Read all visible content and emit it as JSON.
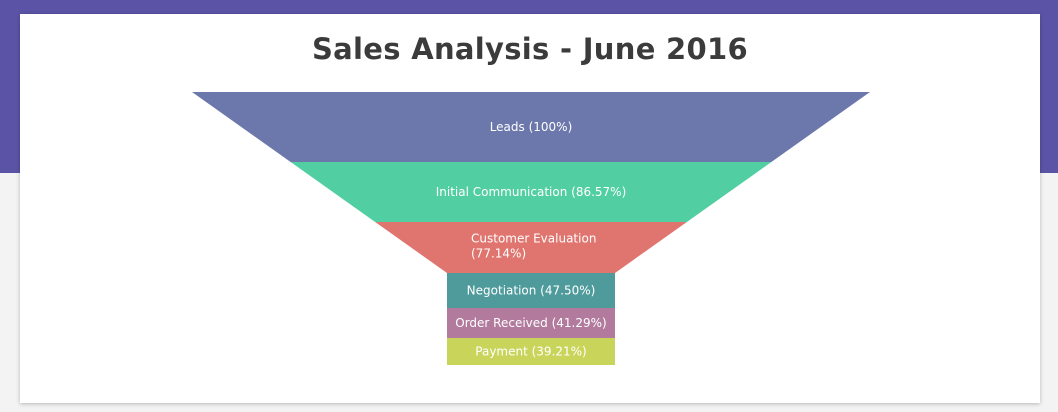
{
  "chart_data": {
    "type": "funnel",
    "title": "Sales Analysis - June 2016",
    "stages": [
      {
        "label": "Leads",
        "percent": 100,
        "percent_label": "(100%)",
        "color": "#6c78ac"
      },
      {
        "label": "Initial Communication",
        "percent": 86.57,
        "percent_label": "(86.57%)",
        "color": "#52cfa2"
      },
      {
        "label": "Customer Evaluation",
        "percent": 77.14,
        "percent_label": "(77.14%)",
        "color": "#e0756f"
      },
      {
        "label": "Negotiation",
        "percent": 47.5,
        "percent_label": "(47.50%)",
        "color": "#4f9b9c"
      },
      {
        "label": "Order Received",
        "percent": 41.29,
        "percent_label": "(41.29%)",
        "color": "#b27b9e"
      },
      {
        "label": "Payment",
        "percent": 39.21,
        "percent_label": "(39.21%)",
        "color": "#c9d55a"
      }
    ]
  },
  "colors": {
    "header_band": "#5b54a6",
    "card": "#ffffff",
    "title_text": "#3b3b3b"
  }
}
